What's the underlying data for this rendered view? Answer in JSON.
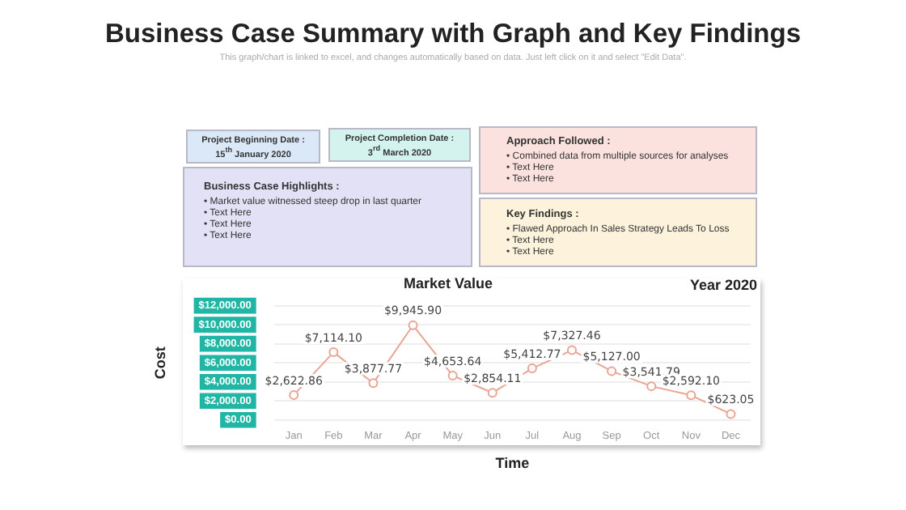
{
  "chart_data": [
    {
      "type": "other",
      "title": "Business Case Summary with Graph and Key Findings",
      "subtitle": "This graph/chart is linked to excel, and changes automatically based on data. Just left click on it and select \"Edit Data\"."
    },
    {
      "type": "other",
      "title": "Project Beginning  Date : 15$^{th}$ January 2020"
    },
    {
      "type": "other",
      "title": "Project Completion  Date : 3$^{rd}$ March 2020"
    },
    {
      "type": "other",
      "title": "Business Case Highlights :",
      "annotations": [
        "• Market value witnessed steep drop in last quarter",
        "• Text Here",
        "• Text Here",
        "• Text Here"
      ]
    },
    {
      "type": "other",
      "title": "Approach Followed :",
      "annotations": [
        "• Combined data from multiple sources for analyses",
        "• Text Here",
        "• Text Here"
      ]
    },
    {
      "type": "other",
      "title": "Key Findings :",
      "annotations": [
        "• Flawed Approach In Sales Strategy Leads To Loss",
        "• Text Here",
        "• Text Here"
      ]
    },
    {
      "type": "line",
      "title": "Market Value",
      "xlabel": "Time",
      "ylabel": "Cost",
      "annotations": [
        "Year 2020"
      ],
      "categories": [
        "Jan",
        "Feb",
        "Mar",
        "Apr",
        "May",
        "Jun",
        "Jul",
        "Aug",
        "Sep",
        "Oct",
        "Nov",
        "Dec"
      ],
      "series": [
        {
          "color": "#e9a593",
          "values": [
            2622.86,
            7114.1,
            3877.77,
            9945.9,
            4653.64,
            2854.11,
            5412.77,
            7327.46,
            5127.0,
            3541.79,
            2592.1,
            623.05
          ],
          "value_labels": [
            "$2,622.86",
            "$7,114.10",
            "$3,877.77",
            "$9,945.90",
            "$4,653.64",
            "$2,854.11",
            "$5,412.77",
            "$7,327.46",
            "$5,127.00",
            "$3,541.79",
            "$2,592.10",
            "$623.05"
          ]
        }
      ],
      "ylim": [
        0,
        12000
      ],
      "yticks": [
        {
          "value": 0,
          "label": "$0.00"
        },
        {
          "value": 2000,
          "label": "$2,000.00"
        },
        {
          "value": 4000,
          "label": "$4,000.00"
        },
        {
          "value": 6000,
          "label": "$6,000.00"
        },
        {
          "value": 8000,
          "label": "$8,000.00"
        },
        {
          "value": 10000,
          "label": "$10,000.00"
        },
        {
          "value": 12000,
          "label": "$12,000.00"
        }
      ],
      "grid": "y",
      "marker": "circle"
    }
  ]
}
